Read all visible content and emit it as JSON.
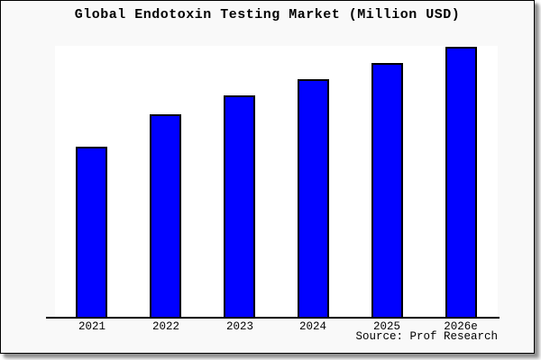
{
  "title": "Global Endotoxin Testing Market (Million USD)",
  "source_note": "Source: Prof Research",
  "chart_data": {
    "type": "bar",
    "title": "Global Endotoxin Testing Market (Million USD)",
    "categories": [
      "2021",
      "2022",
      "2023",
      "2024",
      "2025",
      "2026e"
    ],
    "values": [
      63,
      75,
      82,
      88,
      94,
      100
    ],
    "values_note": "relative bar heights as % of tallest bar (2026e); no y-axis ticks or value labels are shown in the chart",
    "series_name": "Global Endotoxin Testing Market (Million USD)",
    "xlabel": "",
    "ylabel": "",
    "grid": false,
    "legend_position": "none",
    "source_annotation": "Source: Prof Research",
    "bar_color": "#0000FF",
    "bar_border_color": "#000000",
    "plot_background": "#FFFFFF",
    "page_background": "#F9F9F9",
    "frame_border_color": "#000000",
    "text_color": "#000000"
  }
}
